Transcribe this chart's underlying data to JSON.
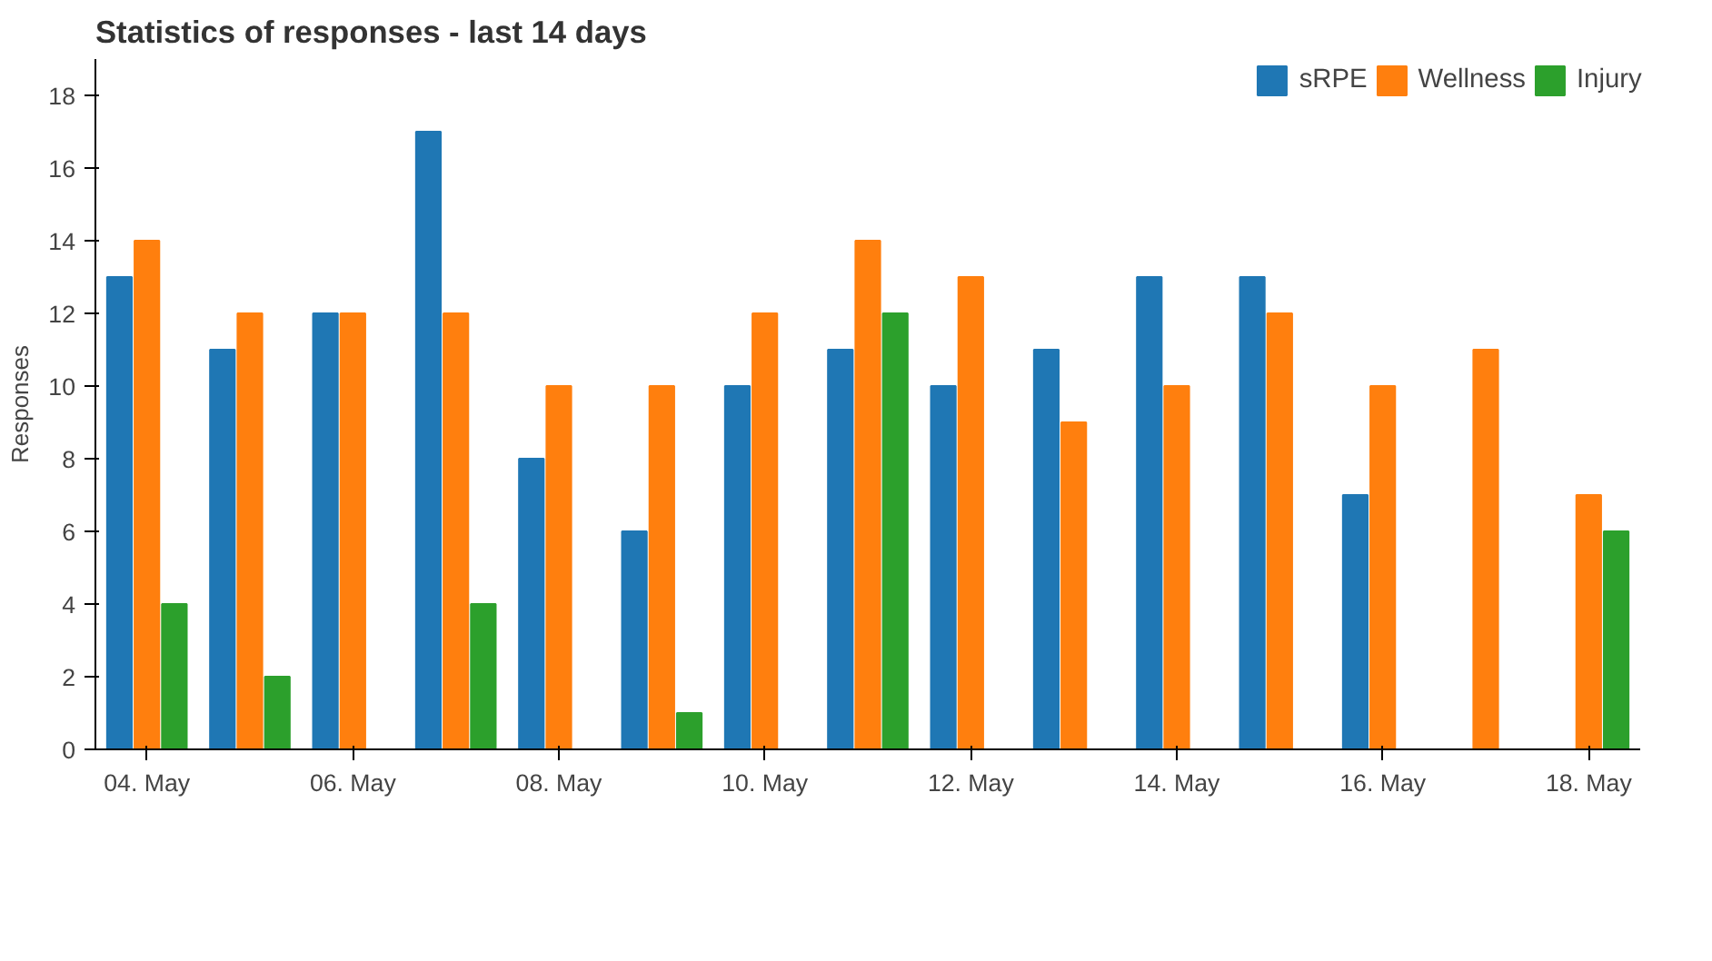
{
  "chart_data": {
    "type": "bar",
    "title": "Statistics of responses - last 14 days",
    "ylabel": "Responses",
    "categories": [
      "04. May",
      null,
      "06. May",
      null,
      "08. May",
      null,
      "10. May",
      null,
      "12. May",
      null,
      "14. May",
      null,
      "16. May",
      null,
      "18. May"
    ],
    "series": [
      {
        "name": "sRPE",
        "color": "#1f77b4",
        "values": [
          13,
          11,
          12,
          17,
          8,
          6,
          10,
          11,
          10,
          11,
          13,
          13,
          7,
          0,
          0
        ]
      },
      {
        "name": "Wellness",
        "color": "#ff7f0e",
        "values": [
          14,
          12,
          12,
          12,
          10,
          10,
          12,
          14,
          13,
          9,
          10,
          12,
          10,
          11,
          7
        ]
      },
      {
        "name": "Injury",
        "color": "#2ca02c",
        "values": [
          4,
          2,
          0,
          4,
          0,
          1,
          0,
          12,
          0,
          0,
          0,
          0,
          0,
          0,
          6
        ]
      }
    ],
    "ylim": [
      0,
      19
    ],
    "yticks": [
      0,
      2,
      4,
      6,
      8,
      10,
      12,
      14,
      16,
      18
    ],
    "grid": false,
    "legend": "top right"
  }
}
